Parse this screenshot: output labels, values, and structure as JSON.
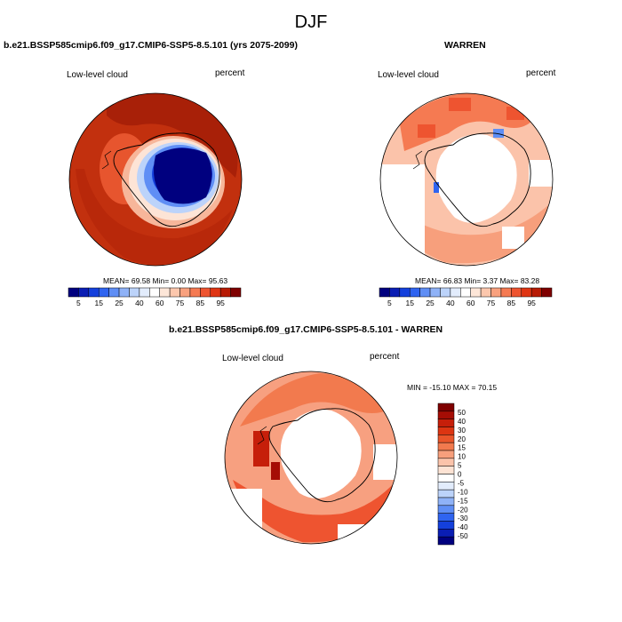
{
  "title": "DJF",
  "panels": [
    {
      "id": "model",
      "title": "b.e21.BSSP585cmip6.f09_g17.CMIP6-SSP5-8.5.101 (yrs 2075-2099)",
      "left_label": "Low-level cloud",
      "right_label": "percent",
      "stats": "MEAN=  69.58  Min=   0.00  Max=  95.63"
    },
    {
      "id": "obs",
      "title": "WARREN",
      "left_label": "Low-level cloud",
      "right_label": "percent",
      "stats": "MEAN=  66.83  Min=   3.37  Max=  83.28"
    },
    {
      "id": "diff",
      "title": "b.e21.BSSP585cmip6.f09_g17.CMIP6-SSP5-8.5.101 - WARREN",
      "left_label": "Low-level cloud",
      "right_label": "percent",
      "stats": "MIN = -15.10 MAX =  70.15"
    }
  ],
  "colorbar_abs": {
    "colors": [
      "#00007f",
      "#0a1eb4",
      "#1440dc",
      "#2f64f0",
      "#5f8ef5",
      "#8fb2f7",
      "#bcd3fa",
      "#e2ecfc",
      "#ffffff",
      "#fde6d8",
      "#fcc7ad",
      "#f9a17e",
      "#f57a52",
      "#ee5430",
      "#df3513",
      "#b81b05",
      "#7f0000"
    ],
    "labels": [
      "5",
      "15",
      "25",
      "40",
      "60",
      "75",
      "85",
      "95"
    ]
  },
  "colorbar_diff": {
    "colors": [
      "#7f0000",
      "#a50d05",
      "#c61f0a",
      "#dc3512",
      "#e9552a",
      "#f27a4e",
      "#f79f7c",
      "#fbc3aa",
      "#fde3d4",
      "#ffffff",
      "#e2ecfc",
      "#bcd3fa",
      "#8fb2f7",
      "#5f8ef5",
      "#2f64f0",
      "#1440dc",
      "#0a1eb4",
      "#00007f"
    ],
    "labels": [
      "50",
      "40",
      "30",
      "20",
      "15",
      "10",
      "5",
      "0",
      "-5",
      "-10",
      "-15",
      "-20",
      "-30",
      "-40",
      "-50"
    ]
  }
}
